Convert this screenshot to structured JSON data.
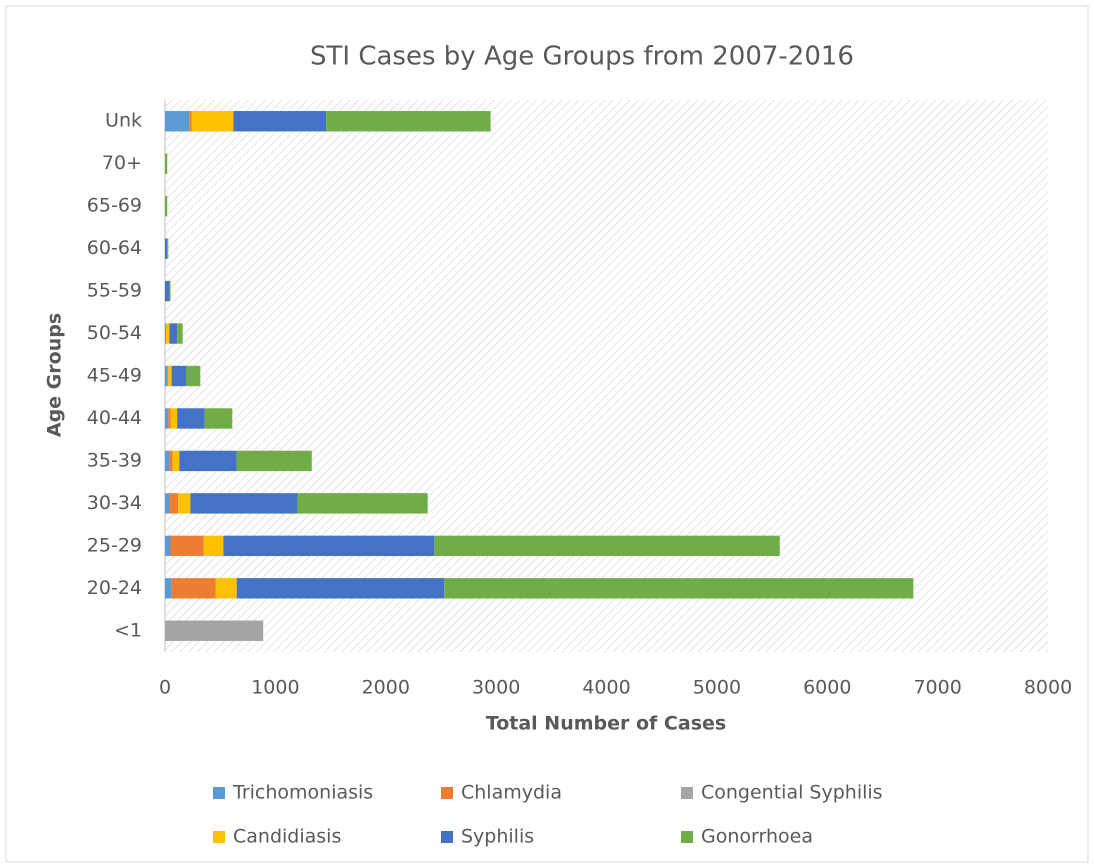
{
  "chart_data": {
    "type": "stacked_barh",
    "title": "STI Cases by Age Groups from 2007-2016",
    "x_label": "Total Number of Cases",
    "y_label": "Age Groups",
    "categories": [
      "<1",
      "20-24",
      "25-29",
      "30-34",
      "35-39",
      "40-44",
      "45-49",
      "50-54",
      "55-59",
      "60-64",
      "65-69",
      "70+",
      "Unk"
    ],
    "series": [
      {
        "name": "Trichomoniasis",
        "color": "#5b9bd5",
        "values": [
          0,
          60,
          50,
          40,
          40,
          30,
          20,
          10,
          0,
          0,
          0,
          0,
          220
        ]
      },
      {
        "name": "Chlamydia",
        "color": "#ed7d31",
        "values": [
          0,
          400,
          300,
          80,
          30,
          20,
          10,
          0,
          0,
          0,
          0,
          0,
          20
        ]
      },
      {
        "name": "Congential Syphilis",
        "color": "#a5a5a5",
        "values": [
          890,
          0,
          0,
          0,
          0,
          0,
          0,
          0,
          0,
          0,
          0,
          0,
          0
        ]
      },
      {
        "name": "Candidiasis",
        "color": "#ffc000",
        "values": [
          0,
          190,
          180,
          110,
          60,
          60,
          30,
          30,
          0,
          0,
          0,
          0,
          380
        ]
      },
      {
        "name": "Syphilis",
        "color": "#4472c4",
        "values": [
          0,
          1880,
          1910,
          970,
          520,
          250,
          130,
          70,
          40,
          20,
          0,
          0,
          840
        ]
      },
      {
        "name": "Gonorrhoea",
        "color": "#70ad47",
        "values": [
          0,
          4250,
          3130,
          1180,
          680,
          250,
          130,
          50,
          10,
          10,
          20,
          20,
          1490
        ]
      }
    ],
    "xlim": [
      0,
      8000
    ],
    "xticks": [
      0,
      1000,
      2000,
      3000,
      4000,
      5000,
      6000,
      7000,
      8000
    ]
  }
}
